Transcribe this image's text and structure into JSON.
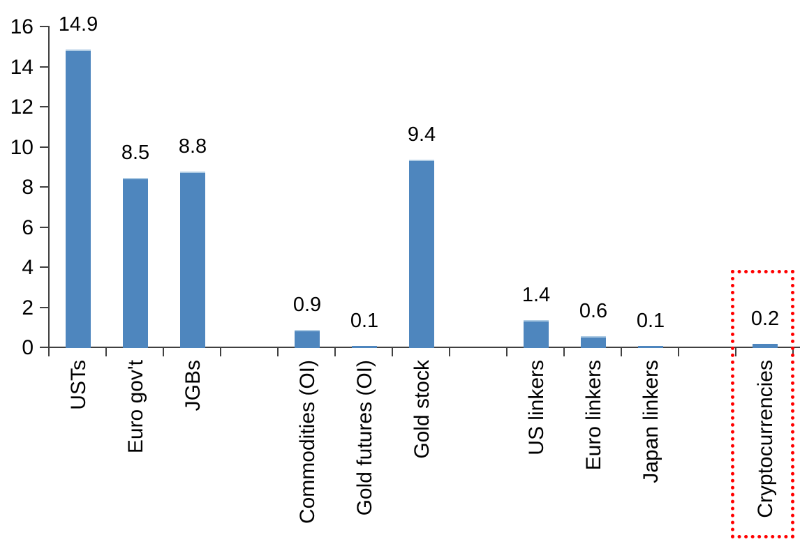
{
  "chart_data": {
    "type": "bar",
    "title": "",
    "categories": [
      "USTs",
      "Euro gov't",
      "JGBs",
      "",
      "Commodities (OI)",
      "Gold futures (OI)",
      "Gold stock",
      "",
      "US linkers",
      "Euro linkers",
      "Japan linkers",
      "",
      "Cryptocurrencies"
    ],
    "values": [
      14.9,
      8.5,
      8.8,
      null,
      0.9,
      0.1,
      9.4,
      null,
      1.4,
      0.6,
      0.1,
      null,
      0.2
    ],
    "value_labels": [
      "14.9",
      "8.5",
      "8.8",
      null,
      "0.9",
      "0.1",
      "9.4",
      null,
      "1.4",
      "0.6",
      "0.1",
      null,
      "0.2"
    ],
    "xlabel": "",
    "ylabel": "",
    "ylim": [
      0,
      16
    ],
    "yticks": [
      0,
      2,
      4,
      6,
      8,
      10,
      12,
      14,
      16
    ],
    "grid": false,
    "legend": "none",
    "category_label_rotation_deg": 90,
    "bar_color": "#4E86BE",
    "bar_top_edge_color": "#AECBE3",
    "axis_color": "#404040",
    "text_color": "#000000",
    "highlight": {
      "category": "Cryptocurrencies",
      "style": "dotted-box",
      "color": "#FF0000"
    }
  }
}
